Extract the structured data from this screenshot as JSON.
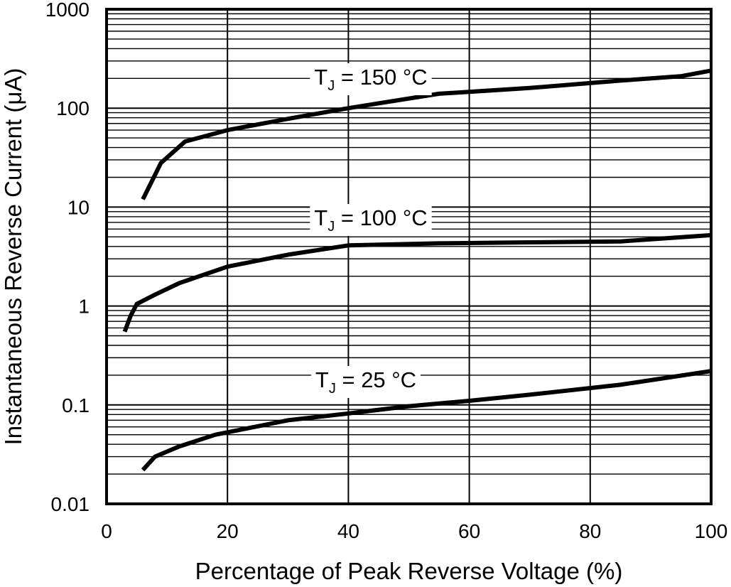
{
  "chart_data": {
    "type": "line",
    "title": "",
    "xlabel": "Percentage of Peak Reverse Voltage (%)",
    "ylabel": "Instantaneous Reverse Current (μA)",
    "xlim": [
      0,
      100
    ],
    "ylim": [
      0.01,
      1000
    ],
    "yscale": "log",
    "grid": true,
    "legend": "none",
    "xticks": [
      0,
      20,
      40,
      60,
      80,
      100
    ],
    "xtick_labels": [
      "0",
      "20",
      "40",
      "60",
      "80",
      "100"
    ],
    "yticks": [
      0.01,
      0.1,
      1,
      10,
      100,
      1000
    ],
    "ytick_labels": [
      "0.01",
      "0.1",
      "1",
      "10",
      "100",
      "1000"
    ],
    "series": [
      {
        "name": "TJ = 150 °C",
        "label_main": "T",
        "label_sub": "J",
        "label_rest": " = 150 °C",
        "x": [
          6,
          9,
          13,
          20,
          30,
          40,
          55,
          70,
          85,
          95,
          100
        ],
        "y": [
          12,
          28,
          46,
          60,
          78,
          100,
          140,
          160,
          190,
          210,
          240
        ]
      },
      {
        "name": "TJ = 100 °C",
        "label_main": "T",
        "label_sub": "J",
        "label_rest": " = 100 °C",
        "x": [
          3,
          4,
          5,
          8,
          12,
          20,
          30,
          40,
          55,
          70,
          85,
          100
        ],
        "y": [
          0.55,
          0.8,
          1.05,
          1.3,
          1.7,
          2.5,
          3.3,
          4.1,
          4.3,
          4.4,
          4.5,
          5.2
        ]
      },
      {
        "name": "TJ = 25 °C",
        "label_main": "T",
        "label_sub": "J",
        "label_rest": " = 25 °C",
        "x": [
          6,
          8,
          12,
          18,
          30,
          40,
          50,
          60,
          70,
          85,
          100
        ],
        "y": [
          0.022,
          0.03,
          0.038,
          0.05,
          0.07,
          0.082,
          0.097,
          0.11,
          0.127,
          0.16,
          0.22
        ]
      }
    ]
  }
}
